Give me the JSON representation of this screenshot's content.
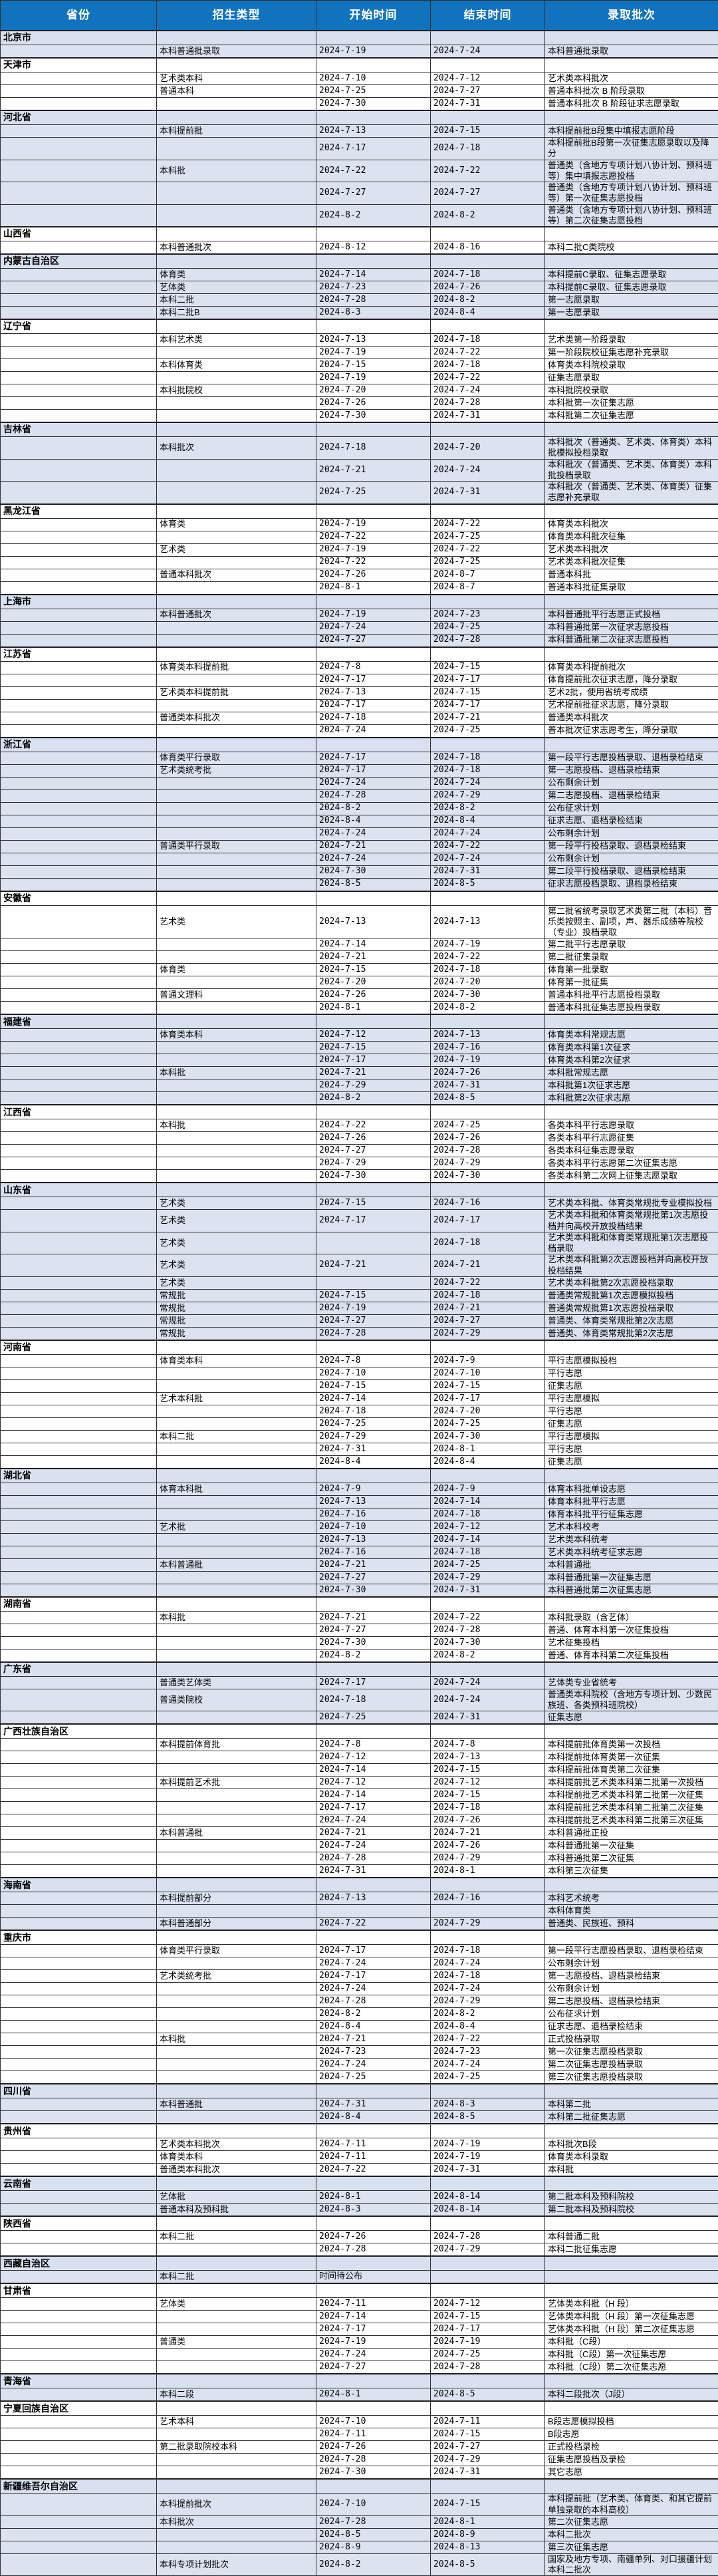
{
  "header": {
    "columns": [
      "省份",
      "招生类型",
      "开始时间",
      "结束时间",
      "录取批次"
    ]
  },
  "colors": {
    "header_bg": "#1172be",
    "header_text": "#ffffff",
    "tint_row_bg": "#dbe3f1",
    "border": "#2f2f2f"
  },
  "sections": [
    {
      "province": "北京市",
      "rows": [
        [
          "本科普通批录取",
          "2024-7-19",
          "2024-7-24",
          "本科普通批录取"
        ]
      ]
    },
    {
      "province": "天津市",
      "rows": [
        [
          "艺术类本科",
          "2024-7-10",
          "2024-7-12",
          "艺术类本科批次"
        ],
        [
          "普通本科",
          "2024-7-25",
          "2024-7-27",
          "普通本科批次 B 阶段录取"
        ],
        [
          "",
          "2024-7-30",
          "2024-7-31",
          "普通本科批次 B 阶段征求志愿录取"
        ]
      ]
    },
    {
      "province": "河北省",
      "rows": [
        [
          "本科提前批",
          "2024-7-13",
          "2024-7-15",
          "本科提前批B段集中填报志愿阶段"
        ],
        [
          "",
          "2024-7-17",
          "2024-7-18",
          "本科提前批B段第一次征集志愿录取以及降分"
        ],
        [
          "本科批",
          "2024-7-22",
          "2024-7-22",
          "普通类（含地方专项计划八协计划、预科班等）集中填报志愿投档"
        ],
        [
          "",
          "2024-7-27",
          "2024-7-27",
          "普通类（含地方专项计划八协计划、预科班等）第一次征集志愿投档"
        ],
        [
          "",
          "2024-8-2",
          "2024-8-2",
          "普通类（含地方专项计划八协计划、预科班等）第二次征集志愿投档"
        ]
      ]
    },
    {
      "province": "山西省",
      "rows": [
        [
          "本科普通批次",
          "2024-8-12",
          "2024-8-16",
          "本科二批C类院校"
        ]
      ]
    },
    {
      "province": "内蒙古自治区",
      "rows": [
        [
          "体育类",
          "2024-7-14",
          "2024-7-18",
          "本科提前C录取、征集志愿录取"
        ],
        [
          "艺体类",
          "2024-7-23",
          "2024-7-26",
          "本科提前C录取、征集志愿录取"
        ],
        [
          "本科二批",
          "2024-7-28",
          "2024-8-2",
          "第一志愿录取"
        ],
        [
          "本科二批B",
          "2024-8-3",
          "2024-8-4",
          "第一志愿录取"
        ]
      ]
    },
    {
      "province": "辽宁省",
      "rows": [
        [
          "本科艺术类",
          "2024-7-13",
          "2024-7-18",
          "艺术类第一阶段录取"
        ],
        [
          "",
          "2024-7-19",
          "2024-7-22",
          "第一阶段院校征集志愿补充录取"
        ],
        [
          "本科体育类",
          "2024-7-15",
          "2024-7-18",
          "体育类本科院校录取"
        ],
        [
          "",
          "2024-7-19",
          "2024-7-22",
          "征集志愿录取"
        ],
        [
          "本科批院校",
          "2024-7-20",
          "2024-7-24",
          "本科批院校录取"
        ],
        [
          "",
          "2024-7-26",
          "2024-7-28",
          "本科批第一次征集志愿"
        ],
        [
          "",
          "2024-7-30",
          "2024-7-31",
          "本科批第二次征集志愿"
        ]
      ]
    },
    {
      "province": "吉林省",
      "rows": [
        [
          "本科批次",
          "2024-7-18",
          "2024-7-20",
          "本科批次（普通类、艺术类、体育类）本科批模拟投档录取"
        ],
        [
          "",
          "2024-7-21",
          "2024-7-24",
          "本科批次（普通类、艺术类、体育类）本科批投档录取"
        ],
        [
          "",
          "2024-7-25",
          "2024-7-31",
          "本科批次（普通类、艺术类、体育类）征集志愿补充录取"
        ]
      ]
    },
    {
      "province": "黑龙江省",
      "rows": [
        [
          "体育类",
          "2024-7-19",
          "2024-7-22",
          "体育类本科批次"
        ],
        [
          "",
          "2024-7-22",
          "2024-7-25",
          "体育类本科批次征集"
        ],
        [
          "艺术类",
          "2024-7-19",
          "2024-7-22",
          "艺术类本科批次"
        ],
        [
          "",
          "2024-7-22",
          "2024-7-25",
          "艺术类本科批次征集"
        ],
        [
          "普通本科批次",
          "2024-7-26",
          "2024-8-7",
          "普通本科批"
        ],
        [
          "",
          "2024-8-1",
          "2024-8-7",
          "普通本科批征集录取"
        ]
      ]
    },
    {
      "province": "上海市",
      "rows": [
        [
          "本科普通批次",
          "2024-7-19",
          "2024-7-23",
          "本科普通批平行志愿正式投档"
        ],
        [
          "",
          "2024-7-24",
          "2024-7-25",
          "本科普通批第一次征求志愿投档"
        ],
        [
          "",
          "2024-7-27",
          "2024-7-28",
          "本科普通批第二次征求志愿投档"
        ]
      ]
    },
    {
      "province": "江苏省",
      "rows": [
        [
          "体育类本科提前批",
          "2024-7-8",
          "2024-7-15",
          "体育类本科提前批次"
        ],
        [
          "",
          "2024-7-17",
          "2024-7-17",
          "体育提前批次征求志愿，降分录取"
        ],
        [
          "艺术类本科提前批",
          "2024-7-13",
          "2024-7-15",
          "艺术2批，使用省统考成绩"
        ],
        [
          "",
          "2024-7-17",
          "2024-7-17",
          "艺术提前批征求志愿，降分录取"
        ],
        [
          "普通类本科批次",
          "2024-7-18",
          "2024-7-21",
          "普通类本科批次"
        ],
        [
          "",
          "2024-7-24",
          "2024-7-25",
          "普本批次征求志愿考生，降分录取"
        ]
      ]
    },
    {
      "province": "浙江省",
      "rows": [
        [
          "体育类平行录取",
          "2024-7-17",
          "2024-7-18",
          "第一段平行志愿投档录取、退档录检结束"
        ],
        [
          "艺术类统考批",
          "2024-7-17",
          "2024-7-18",
          "第一志愿投档、退档录检结束"
        ],
        [
          "",
          "2024-7-24",
          "2024-7-24",
          "公布剩余计划"
        ],
        [
          "",
          "2024-7-28",
          "2024-7-29",
          "第二志愿投档、退档录检结束"
        ],
        [
          "",
          "2024-8-2",
          "2024-8-2",
          "公布征求计划"
        ],
        [
          "",
          "2024-8-4",
          "2024-8-4",
          "征求志愿、退档录检结束"
        ],
        [
          "",
          "2024-7-24",
          "2024-7-24",
          "公布剩余计划"
        ],
        [
          "普通类平行录取",
          "2024-7-21",
          "2024-7-22",
          "第一段平行投档录取、退档录检结束"
        ],
        [
          "",
          "2024-7-24",
          "2024-7-24",
          "公布剩余计划"
        ],
        [
          "",
          "2024-7-30",
          "2024-7-31",
          "第二段平行投档录取、退档录检结束"
        ],
        [
          "",
          "2024-8-5",
          "2024-8-5",
          "征求志愿投档录取、退档录检结束"
        ]
      ]
    },
    {
      "province": "安徽省",
      "rows": [
        [
          "艺术类",
          "2024-7-13",
          "2024-7-13",
          "第二批省统考录取艺术类第二批（本科）音乐类按照主、副项，声、器乐成绩等院校（专业）投档录取"
        ],
        [
          "",
          "2024-7-14",
          "2024-7-19",
          "第二批平行志愿录取"
        ],
        [
          "",
          "2024-7-21",
          "2024-7-22",
          "第二批征集录取"
        ],
        [
          "体育类",
          "2024-7-15",
          "2024-7-18",
          "体育第一批录取"
        ],
        [
          "",
          "2024-7-20",
          "2024-7-20",
          "体育第一批征集"
        ],
        [
          "普通文理科",
          "2024-7-26",
          "2024-7-30",
          "普通本科批平行志愿投档录取"
        ],
        [
          "",
          "2024-8-1",
          "2024-8-2",
          "普通本科批征集志愿投档录取"
        ]
      ]
    },
    {
      "province": "福建省",
      "rows": [
        [
          "体育类本科",
          "2024-7-12",
          "2024-7-13",
          "体育类本科常规志愿"
        ],
        [
          "",
          "2024-7-15",
          "2024-7-16",
          "体育类本科第1次征求"
        ],
        [
          "",
          "2024-7-17",
          "2024-7-19",
          "体育类本科第2次征求"
        ],
        [
          "本科批",
          "2024-7-21",
          "2024-7-26",
          "本科批常规志愿"
        ],
        [
          "",
          "2024-7-29",
          "2024-7-31",
          "本科批第1次征求志愿"
        ],
        [
          "",
          "2024-8-2",
          "2024-8-5",
          "本科批第2次征求志愿"
        ]
      ]
    },
    {
      "province": "江西省",
      "rows": [
        [
          "本科批",
          "2024-7-22",
          "2024-7-25",
          "各类本科平行志愿录取"
        ],
        [
          "",
          "2024-7-26",
          "2024-7-26",
          "各类本科平行志愿征集"
        ],
        [
          "",
          "2024-7-27",
          "2024-7-28",
          "各类本科征集志愿录取"
        ],
        [
          "",
          "2024-7-29",
          "2024-7-29",
          "各类本科平行志愿第二次征集志愿"
        ],
        [
          "",
          "2024-7-30",
          "2024-7-30",
          "各类本科第二次网上征集志愿录取"
        ]
      ]
    },
    {
      "province": "山东省",
      "rows": [
        [
          "艺术类",
          "2024-7-15",
          "2024-7-16",
          "艺术类本科批、体育类常规批专业模拟投档"
        ],
        [
          "艺术类",
          "2024-7-17",
          "2024-7-17",
          "艺术类本科批和体育类常规批第1次志愿投档并向高校开放投档结果"
        ],
        [
          "艺术类",
          "",
          "2024-7-18",
          "艺术类本科批和体育类常规批第1次志愿投档录取"
        ],
        [
          "艺术类",
          "2024-7-21",
          "2024-7-21",
          "艺术类本科批第2次志愿投档并向高校开放投档结果"
        ],
        [
          "艺术类",
          "",
          "2024-7-22",
          "艺术类本科批第2次志愿投档录取"
        ],
        [
          "常规批",
          "2024-7-15",
          "2024-7-18",
          "普通类常规批第1次志愿模拟投档"
        ],
        [
          "常规批",
          "2024-7-19",
          "2024-7-21",
          "普通类常规批第1次志愿投档录取"
        ],
        [
          "常规批",
          "2024-7-27",
          "2024-7-27",
          "普通类、体育类常规批第2次志愿"
        ],
        [
          "常规批",
          "2024-7-28",
          "2024-7-29",
          "普通类、体育类常规批第2次志愿"
        ]
      ]
    },
    {
      "province": "河南省",
      "rows": [
        [
          "体育类本科",
          "2024-7-8",
          "2024-7-9",
          "平行志愿模拟投档"
        ],
        [
          "",
          "2024-7-10",
          "2024-7-10",
          "平行志愿"
        ],
        [
          "",
          "2024-7-15",
          "2024-7-15",
          "征集志愿"
        ],
        [
          "艺术本科批",
          "2024-7-14",
          "2024-7-17",
          "平行志愿模拟"
        ],
        [
          "",
          "2024-7-18",
          "2024-7-20",
          "平行志愿"
        ],
        [
          "",
          "2024-7-25",
          "2024-7-25",
          "征集志愿"
        ],
        [
          "本科二批",
          "2024-7-29",
          "2024-7-30",
          "平行志愿模拟"
        ],
        [
          "",
          "2024-7-31",
          "2024-8-1",
          "平行志愿"
        ],
        [
          "",
          "2024-8-4",
          "2024-8-4",
          "征集志愿"
        ]
      ]
    },
    {
      "province": "湖北省",
      "rows": [
        [
          "体育本科批",
          "2024-7-9",
          "2024-7-9",
          "体育本科批单设志愿"
        ],
        [
          "",
          "2024-7-13",
          "2024-7-14",
          "体育本科批平行志愿"
        ],
        [
          "",
          "2024-7-16",
          "2024-7-18",
          "体育本科批平行征集志愿"
        ],
        [
          "艺术批",
          "2024-7-10",
          "2024-7-12",
          "艺术本科校考"
        ],
        [
          "",
          "2024-7-13",
          "2024-7-14",
          "艺术类本科统考"
        ],
        [
          "",
          "2024-7-16",
          "2024-7-18",
          "艺术类本科统考征求志愿"
        ],
        [
          "本科普通批",
          "2024-7-21",
          "2024-7-25",
          "本科普通批"
        ],
        [
          "",
          "2024-7-27",
          "2024-7-29",
          "本科普通批第一次征集志愿"
        ],
        [
          "",
          "2024-7-30",
          "2024-7-31",
          "本科普通批第二次征集志愿"
        ]
      ]
    },
    {
      "province": "湖南省",
      "rows": [
        [
          "本科批",
          "2024-7-21",
          "2024-7-22",
          "本科批录取（含艺体）"
        ],
        [
          "",
          "2024-7-27",
          "2024-7-28",
          "普通、体育本科第一次征集投档"
        ],
        [
          "",
          "2024-7-30",
          "2024-7-30",
          "艺术征集投档"
        ],
        [
          "",
          "2024-8-2",
          "2024-8-2",
          "普通、体育本科第二次征集投档"
        ]
      ]
    },
    {
      "province": "广东省",
      "rows": [
        [
          "普通类艺体类",
          "2024-7-17",
          "2024-7-24",
          "艺体类专业省统考"
        ],
        [
          "普通类院校",
          "2024-7-18",
          "2024-7-24",
          "普通类本科院校（含地方专项计划、少数民族班、各类预科班院校）"
        ],
        [
          "",
          "2024-7-25",
          "2024-7-31",
          "征集志愿"
        ]
      ]
    },
    {
      "province": "广西壮族自治区",
      "rows": [
        [
          "本科提前体育批",
          "2024-7-8",
          "2024-7-8",
          "本科提前批体育类第一次投档"
        ],
        [
          "",
          "2024-7-12",
          "2024-7-13",
          "本科提前批体育类第一次征集"
        ],
        [
          "",
          "2024-7-14",
          "2024-7-15",
          "本科提前批体育类第二次征集"
        ],
        [
          "本科提前艺术批",
          "2024-7-12",
          "2024-7-12",
          "本科提前批艺术类本科第二批第一次投档"
        ],
        [
          "",
          "2024-7-14",
          "2024-7-15",
          "本科提前批艺术类本科第二批第一次征集"
        ],
        [
          "",
          "2024-7-17",
          "2024-7-18",
          "本科提前批艺术类本科第二批第二次征集"
        ],
        [
          "",
          "2024-7-24",
          "2024-7-26",
          "本科提前批艺术类本科第二批第三次征集"
        ],
        [
          "本科普通批",
          "2024-7-21",
          "2024-7-21",
          "本科普通批正投"
        ],
        [
          "",
          "2024-7-24",
          "2024-7-26",
          "本科普通批第一次征集"
        ],
        [
          "",
          "2024-7-28",
          "2024-7-29",
          "本科普通批第二次征集"
        ],
        [
          "",
          "2024-7-31",
          "2024-8-1",
          "本科第三次征集"
        ]
      ]
    },
    {
      "province": "海南省",
      "rows": [
        [
          "本科提前部分",
          "2024-7-13",
          "2024-7-16",
          "本科艺术统考"
        ],
        [
          "",
          "",
          "",
          "本科体育类"
        ],
        [
          "本科普通部分",
          "2024-7-22",
          "2024-7-29",
          "普通类、民族班、预科"
        ]
      ]
    },
    {
      "province": "重庆市",
      "rows": [
        [
          "体育类平行录取",
          "2024-7-17",
          "2024-7-18",
          "第一段平行志愿投档录取、退档录检结束"
        ],
        [
          "",
          "2024-7-24",
          "2024-7-24",
          "公布剩余计划"
        ],
        [
          "艺术类统考批",
          "2024-7-17",
          "2024-7-18",
          "第一志愿投档、退档录检结束"
        ],
        [
          "",
          "2024-7-24",
          "2024-7-24",
          "公布剩余计划"
        ],
        [
          "",
          "2024-7-28",
          "2024-7-29",
          "第二志愿投档、退档录检结束"
        ],
        [
          "",
          "2024-8-2",
          "2024-8-2",
          "公布征求计划"
        ],
        [
          "",
          "2024-8-4",
          "2024-8-4",
          "征求志愿、退档录检结束"
        ],
        [
          "本科批",
          "2024-7-21",
          "2024-7-22",
          "正式投档录取"
        ],
        [
          "",
          "2024-7-23",
          "2024-7-23",
          "第一次征集志愿投档录取"
        ],
        [
          "",
          "2024-7-24",
          "2024-7-24",
          "第二次征集志愿投档录取"
        ],
        [
          "",
          "2024-7-25",
          "2024-7-25",
          "第三次征集志愿投档录取"
        ]
      ]
    },
    {
      "province": "四川省",
      "rows": [
        [
          "本科普通批",
          "2024-7-31",
          "2024-8-3",
          "本科第二批"
        ],
        [
          "",
          "2024-8-4",
          "2024-8-5",
          "本科第二批征集志愿"
        ]
      ]
    },
    {
      "province": "贵州省",
      "rows": [
        [
          "艺术类本科批次",
          "2024-7-11",
          "2024-7-19",
          "本科批次B段"
        ],
        [
          "体育类本科",
          "2024-7-11",
          "2024-7-19",
          "体育类本科录取"
        ],
        [
          "普通类本科批次",
          "2024-7-22",
          "2024-7-31",
          "本科批"
        ]
      ]
    },
    {
      "province": "云南省",
      "rows": [
        [
          "艺体批",
          "2024-8-1",
          "2024-8-14",
          "第二批本科及预科院校"
        ],
        [
          "普通本科及预科批",
          "2024-8-3",
          "2024-8-14",
          "第二批本科及预科院校"
        ]
      ]
    },
    {
      "province": "陕西省",
      "rows": [
        [
          "本科二批",
          "2024-7-26",
          "2024-7-28",
          "本科普通二批"
        ],
        [
          "",
          "2024-7-28",
          "2024-7-29",
          "本科二批征集志愿"
        ]
      ]
    },
    {
      "province": "西藏自治区",
      "rows": [
        [
          "本科二批",
          "时间待公布",
          "",
          ""
        ]
      ]
    },
    {
      "province": "甘肃省",
      "rows": [
        [
          "艺体类",
          "2024-7-11",
          "2024-7-12",
          "艺体类本科批（H 段）"
        ],
        [
          "",
          "2024-7-14",
          "2024-7-15",
          "艺体类本科批（H 段）第一次征集志愿"
        ],
        [
          "",
          "2024-7-17",
          "2024-7-17",
          "艺体类本科批（H 段）第二次征集志愿"
        ],
        [
          "普通类",
          "2024-7-19",
          "2024-7-19",
          "本科批（C段）"
        ],
        [
          "",
          "2024-7-24",
          "2024-7-25",
          "本科批（C段）第一次征集志愿"
        ],
        [
          "",
          "2024-7-27",
          "2024-7-28",
          "本科批（C段）第二次征集志愿"
        ]
      ]
    },
    {
      "province": "青海省",
      "rows": [
        [
          "本科二段",
          "2024-8-1",
          "2024-8-5",
          "本科二段批次（J段）"
        ]
      ]
    },
    {
      "province": "宁夏回族自治区",
      "rows": [
        [
          "艺术本科",
          "2024-7-10",
          "2024-7-11",
          "B段志愿模拟投档"
        ],
        [
          "",
          "2024-7-11",
          "2024-7-15",
          "B段志愿"
        ],
        [
          "第二批录取院校本科",
          "2024-7-26",
          "2024-7-27",
          "正式投档录检"
        ],
        [
          "",
          "2024-7-28",
          "2024-7-29",
          "征集志愿投档及录检"
        ],
        [
          "",
          "2024-7-30",
          "2024-7-31",
          "其它志愿"
        ]
      ]
    },
    {
      "province": "新疆维吾尔自治区",
      "rows": [
        [
          "本科提前批次",
          "2024-7-10",
          "2024-7-15",
          "本科提前批（艺术类、体育类、和其它提前单独录取的本科高校）"
        ],
        [
          "本科批次",
          "2024-7-28",
          "2024-8-1",
          "第二次征集志愿"
        ],
        [
          "",
          "2024-8-5",
          "2024-8-9",
          "本科二批次"
        ],
        [
          "",
          "2024-8-9",
          "2024-8-13",
          "第三次征集志愿"
        ],
        [
          "本科专项计划批次",
          "2024-8-2",
          "2024-8-5",
          "国家及地方专项、南疆单列、对口援疆计划本科二批次"
        ]
      ]
    }
  ]
}
